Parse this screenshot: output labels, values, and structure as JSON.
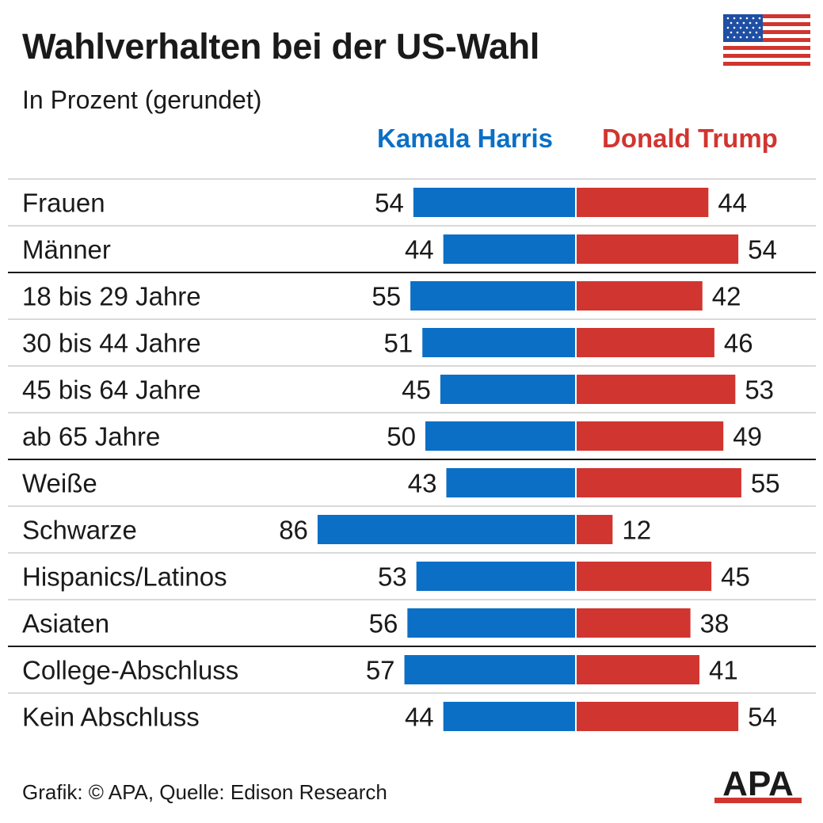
{
  "header": {
    "title": "Wahlverhalten bei der US-Wahl",
    "subtitle": "In Prozent (gerundet)"
  },
  "footer": {
    "credit": "Grafik: © APA, Quelle: Edison Research",
    "logo_text": "APA"
  },
  "icons": {
    "flag": "us-flag-icon",
    "logo": "apa-logo"
  },
  "colors": {
    "harris": "#0b6fc6",
    "trump": "#d13530",
    "text": "#1a1a1a",
    "row_divider": "#d9d9d9",
    "group_divider": "#1a1a1a"
  },
  "chart_data": {
    "type": "bar",
    "orientation": "horizontal-diverging",
    "categories": [
      "Frauen",
      "Männer",
      "18 bis 29 Jahre",
      "30 bis 44 Jahre",
      "45 bis 64 Jahre",
      "ab 65 Jahre",
      "Weiße",
      "Schwarze",
      "Hispanics/Latinos",
      "Asiaten",
      "College-Abschluss",
      "Kein Abschluss"
    ],
    "group_breaks_after": [
      1,
      5,
      9
    ],
    "series": [
      {
        "name": "Kamala Harris",
        "values": [
          54,
          44,
          55,
          51,
          45,
          50,
          43,
          86,
          53,
          56,
          57,
          44
        ]
      },
      {
        "name": "Donald Trump",
        "values": [
          44,
          54,
          42,
          46,
          53,
          49,
          55,
          12,
          45,
          38,
          41,
          54
        ]
      }
    ],
    "units": "%",
    "data_labels": true,
    "legend": "top, above bars",
    "grid": false
  }
}
